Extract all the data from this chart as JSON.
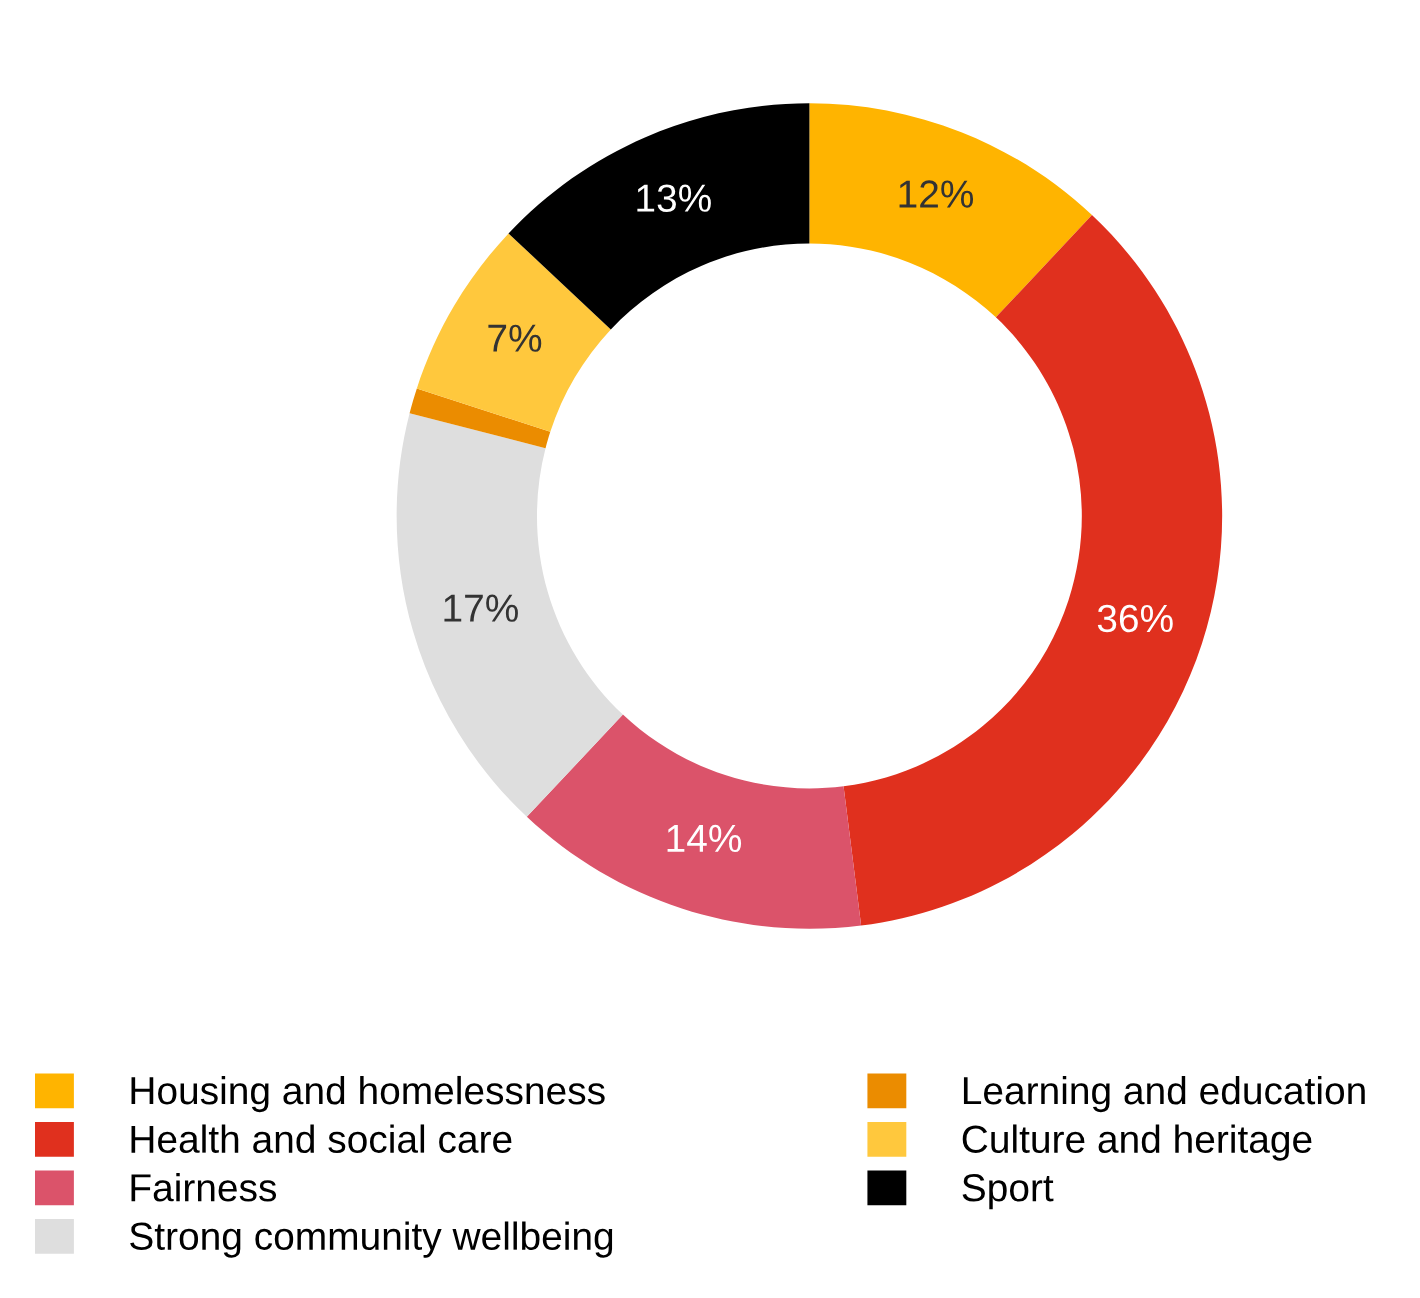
{
  "chart_data": {
    "type": "donut",
    "categories": [
      "Housing and homelessness",
      "Health and social care",
      "Fairness",
      "Strong community wellbeing",
      "Learning and education",
      "Culture and heritage",
      "Sport"
    ],
    "values": [
      12,
      36,
      14,
      17,
      1,
      7,
      13
    ],
    "colors": [
      "#ffb400",
      "#e0301e",
      "#db536a",
      "#dedede",
      "#eb8c00",
      "#ffc83d",
      "#000000"
    ],
    "value_labels": [
      "12%",
      "36%",
      "14%",
      "17%",
      null,
      "7%",
      "13%"
    ],
    "legend": "bottom"
  }
}
